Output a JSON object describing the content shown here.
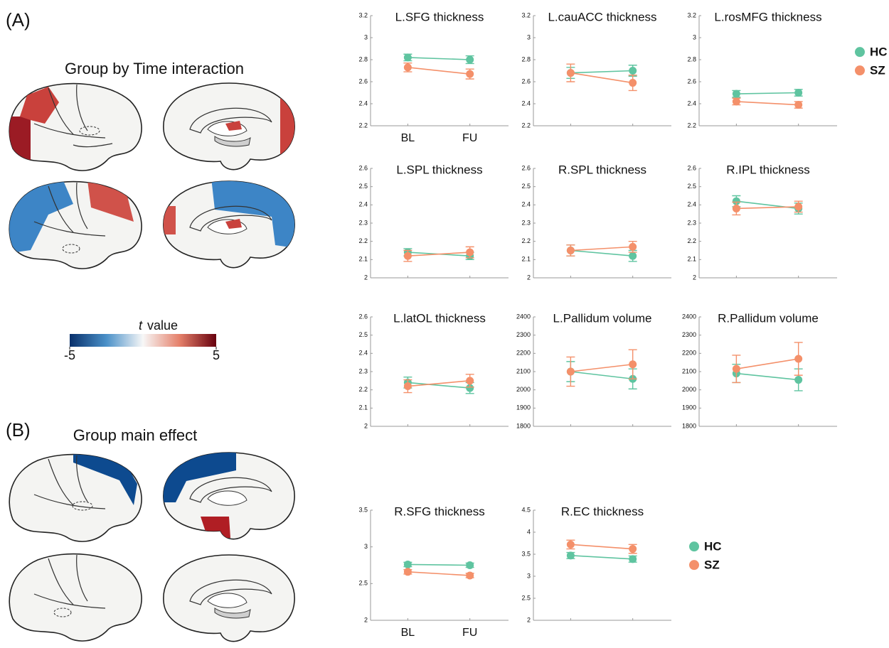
{
  "figure": {
    "panel_a": "(A)",
    "panel_a_title": "Group by Time interaction",
    "panel_b": "(B)",
    "panel_b_title": "Group main effect",
    "colorbar": {
      "symbol": "t",
      "title": "value",
      "lim": [
        -5,
        5
      ],
      "ticks": [
        -5,
        5
      ]
    }
  },
  "chart_data": [
    {
      "type": "line",
      "title": "L.SFG thickness",
      "categories": [
        "BL",
        "FU"
      ],
      "ylim": [
        2.2,
        3.2
      ],
      "yticks": [
        2.2,
        2.4,
        2.6,
        2.8,
        3,
        3.2
      ],
      "series": [
        {
          "name": "HC",
          "color": "#5fc4a0",
          "values": [
            2.82,
            2.8
          ],
          "errors": [
            0.03,
            0.035
          ]
        },
        {
          "name": "SZ",
          "color": "#f4906a",
          "values": [
            2.73,
            2.67
          ],
          "errors": [
            0.04,
            0.045
          ]
        }
      ]
    },
    {
      "type": "line",
      "title": "L.cauACC thickness",
      "categories": [
        null,
        null
      ],
      "ylim": [
        2.2,
        3.2
      ],
      "yticks": [
        2.2,
        2.4,
        2.6,
        2.8,
        3,
        3.2
      ],
      "series": [
        {
          "name": "HC",
          "color": "#5fc4a0",
          "values": [
            2.68,
            2.7
          ],
          "errors": [
            0.05,
            0.05
          ]
        },
        {
          "name": "SZ",
          "color": "#f4906a",
          "values": [
            2.68,
            2.59
          ],
          "errors": [
            0.08,
            0.07
          ]
        }
      ]
    },
    {
      "type": "line",
      "title": "L.rosMFG thickness",
      "categories": [
        null,
        null
      ],
      "ylim": [
        2.2,
        3.2
      ],
      "yticks": [
        2.2,
        2.4,
        2.6,
        2.8,
        3,
        3.2
      ],
      "legend": "right",
      "series": [
        {
          "name": "HC",
          "color": "#5fc4a0",
          "values": [
            2.49,
            2.5
          ],
          "errors": [
            0.03,
            0.03
          ]
        },
        {
          "name": "SZ",
          "color": "#f4906a",
          "values": [
            2.42,
            2.39
          ],
          "errors": [
            0.03,
            0.03
          ]
        }
      ]
    },
    {
      "type": "line",
      "title": "L.SPL thickness",
      "categories": [
        null,
        null
      ],
      "ylim": [
        2,
        2.6
      ],
      "yticks": [
        2,
        2.1,
        2.2,
        2.3,
        2.4,
        2.5,
        2.6
      ],
      "series": [
        {
          "name": "HC",
          "color": "#5fc4a0",
          "values": [
            2.14,
            2.12
          ],
          "errors": [
            0.02,
            0.02
          ]
        },
        {
          "name": "SZ",
          "color": "#f4906a",
          "values": [
            2.12,
            2.14
          ],
          "errors": [
            0.03,
            0.03
          ]
        }
      ]
    },
    {
      "type": "line",
      "title": "R.SPL thickness",
      "categories": [
        null,
        null
      ],
      "ylim": [
        2,
        2.6
      ],
      "yticks": [
        2,
        2.1,
        2.2,
        2.3,
        2.4,
        2.5,
        2.6
      ],
      "series": [
        {
          "name": "HC",
          "color": "#5fc4a0",
          "values": [
            2.15,
            2.12
          ],
          "errors": [
            0.03,
            0.03
          ]
        },
        {
          "name": "SZ",
          "color": "#f4906a",
          "values": [
            2.15,
            2.17
          ],
          "errors": [
            0.03,
            0.03
          ]
        }
      ]
    },
    {
      "type": "line",
      "title": "R.IPL thickness",
      "categories": [
        null,
        null
      ],
      "ylim": [
        2,
        2.6
      ],
      "yticks": [
        2,
        2.1,
        2.2,
        2.3,
        2.4,
        2.5,
        2.6
      ],
      "series": [
        {
          "name": "HC",
          "color": "#5fc4a0",
          "values": [
            2.42,
            2.38
          ],
          "errors": [
            0.03,
            0.03
          ]
        },
        {
          "name": "SZ",
          "color": "#f4906a",
          "values": [
            2.38,
            2.39
          ],
          "errors": [
            0.035,
            0.03
          ]
        }
      ]
    },
    {
      "type": "line",
      "title": "L.latOL thickness",
      "categories": [
        null,
        null
      ],
      "ylim": [
        2,
        2.6
      ],
      "yticks": [
        2,
        2.1,
        2.2,
        2.3,
        2.4,
        2.5,
        2.6
      ],
      "series": [
        {
          "name": "HC",
          "color": "#5fc4a0",
          "values": [
            2.24,
            2.21
          ],
          "errors": [
            0.03,
            0.03
          ]
        },
        {
          "name": "SZ",
          "color": "#f4906a",
          "values": [
            2.22,
            2.25
          ],
          "errors": [
            0.035,
            0.035
          ]
        }
      ]
    },
    {
      "type": "line",
      "title": "L.Pallidum volume",
      "categories": [
        null,
        null
      ],
      "ylim": [
        1800,
        2400
      ],
      "yticks": [
        1800,
        1900,
        2000,
        2100,
        2200,
        2300,
        2400
      ],
      "series": [
        {
          "name": "HC",
          "color": "#5fc4a0",
          "values": [
            2100,
            2060
          ],
          "errors": [
            55,
            55
          ]
        },
        {
          "name": "SZ",
          "color": "#f4906a",
          "values": [
            2100,
            2140
          ],
          "errors": [
            80,
            80
          ]
        }
      ]
    },
    {
      "type": "line",
      "title": "R.Pallidum volume",
      "categories": [
        null,
        null
      ],
      "ylim": [
        1800,
        2400
      ],
      "yticks": [
        1800,
        1900,
        2000,
        2100,
        2200,
        2300,
        2400
      ],
      "series": [
        {
          "name": "HC",
          "color": "#5fc4a0",
          "values": [
            2090,
            2055
          ],
          "errors": [
            50,
            60
          ]
        },
        {
          "name": "SZ",
          "color": "#f4906a",
          "values": [
            2115,
            2170
          ],
          "errors": [
            75,
            90
          ]
        }
      ]
    },
    {
      "type": "line",
      "title": "R.SFG thickness",
      "categories": [
        "BL",
        "FU"
      ],
      "ylim": [
        2,
        3.5
      ],
      "yticks": [
        2,
        2.5,
        3,
        3.5
      ],
      "series": [
        {
          "name": "HC",
          "color": "#5fc4a0",
          "values": [
            2.76,
            2.75
          ],
          "errors": [
            0.03,
            0.03
          ]
        },
        {
          "name": "SZ",
          "color": "#f4906a",
          "values": [
            2.66,
            2.61
          ],
          "errors": [
            0.03,
            0.03
          ]
        }
      ]
    },
    {
      "type": "line",
      "title": "R.EC thickness",
      "categories": [
        null,
        null
      ],
      "ylim": [
        2,
        4.5
      ],
      "yticks": [
        2,
        2.5,
        3,
        3.5,
        4,
        4.5
      ],
      "legend": "right",
      "series": [
        {
          "name": "HC",
          "color": "#5fc4a0",
          "values": [
            3.47,
            3.39
          ],
          "errors": [
            0.07,
            0.07
          ]
        },
        {
          "name": "SZ",
          "color": "#f4906a",
          "values": [
            3.72,
            3.62
          ],
          "errors": [
            0.1,
            0.1
          ]
        }
      ]
    }
  ]
}
